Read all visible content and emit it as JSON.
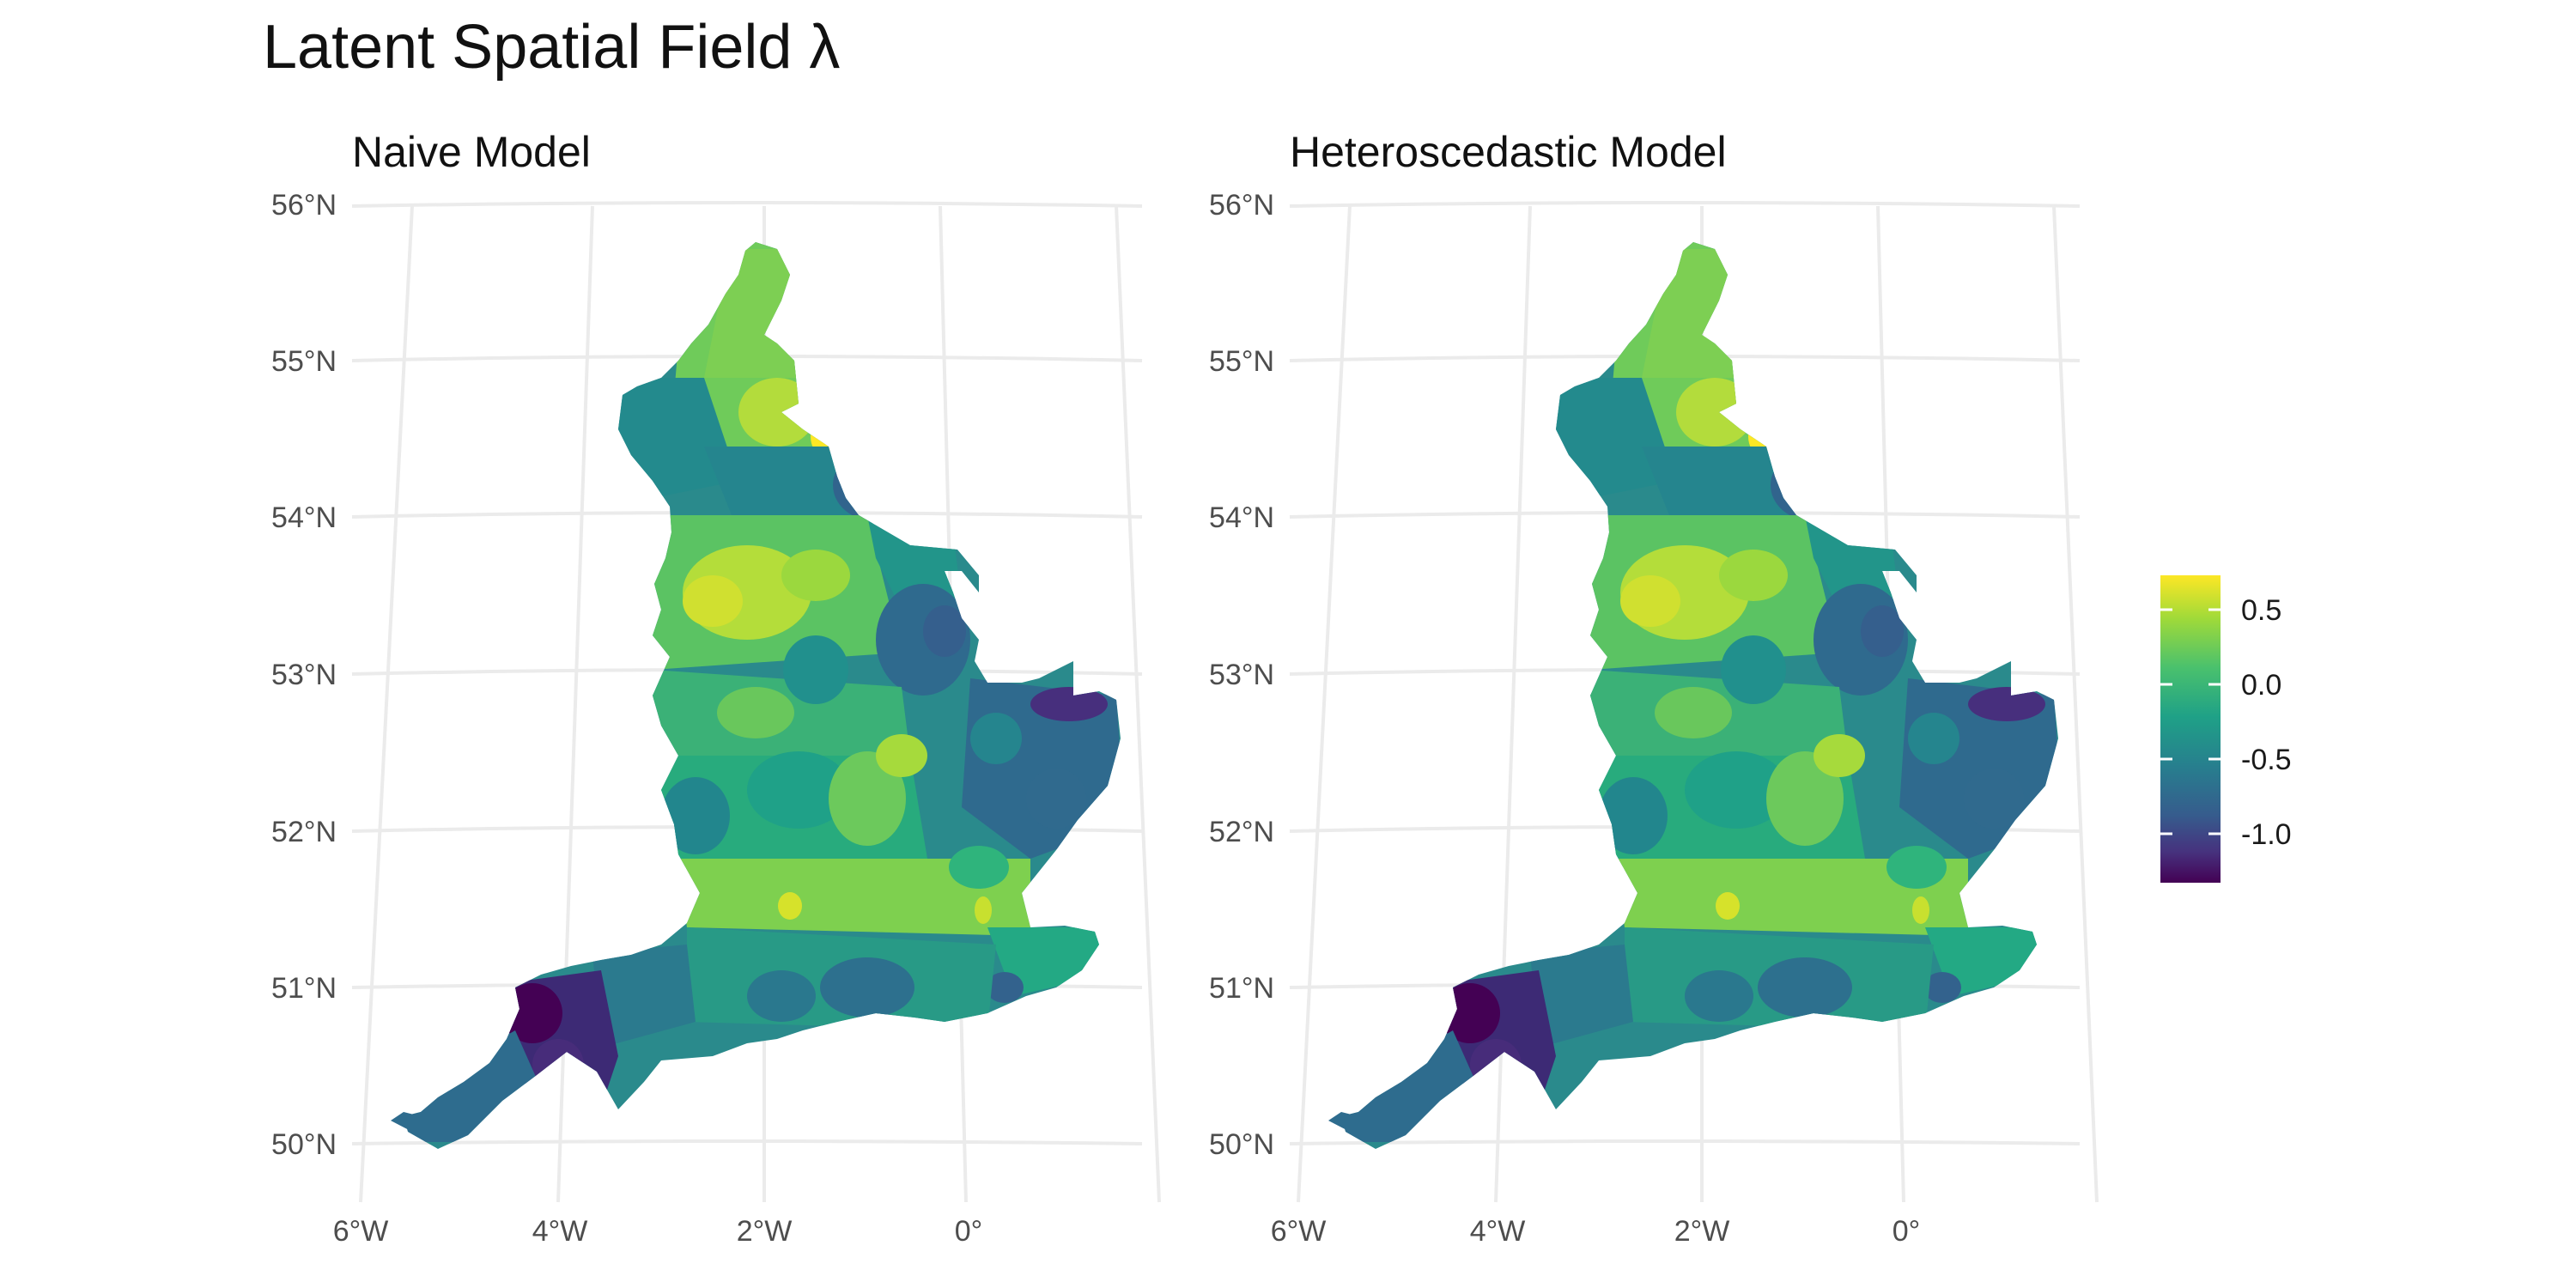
{
  "title": "Latent Spatial Field λ",
  "panels": [
    {
      "title": "Naive Model"
    },
    {
      "title": "Heteroscedastic Model"
    }
  ],
  "axes": {
    "lat_labels": [
      "56°N",
      "55°N",
      "54°N",
      "53°N",
      "52°N",
      "51°N",
      "50°N"
    ],
    "lon_labels": [
      "6°W",
      "4°W",
      "2°W",
      "0°"
    ]
  },
  "legend": {
    "labels": [
      "0.5",
      "0.0",
      "-0.5",
      "-1.0"
    ],
    "palette": [
      "#fde725",
      "#a0da39",
      "#4ac16d",
      "#1fa187",
      "#277f8e",
      "#365c8d",
      "#46327e",
      "#440154"
    ]
  },
  "colors": {
    "outline": "#2a8a8c",
    "north_east": "#8fd34a",
    "yorkshire_hotspot": "#c4df30",
    "south_hotspot": "#b8de3a",
    "devon_dark": "#3d2a75",
    "cornwall": "#2e6c8e",
    "east_anglia": "#2f6a8e",
    "lincs": "#31648d",
    "teesside": "#fde725"
  }
}
